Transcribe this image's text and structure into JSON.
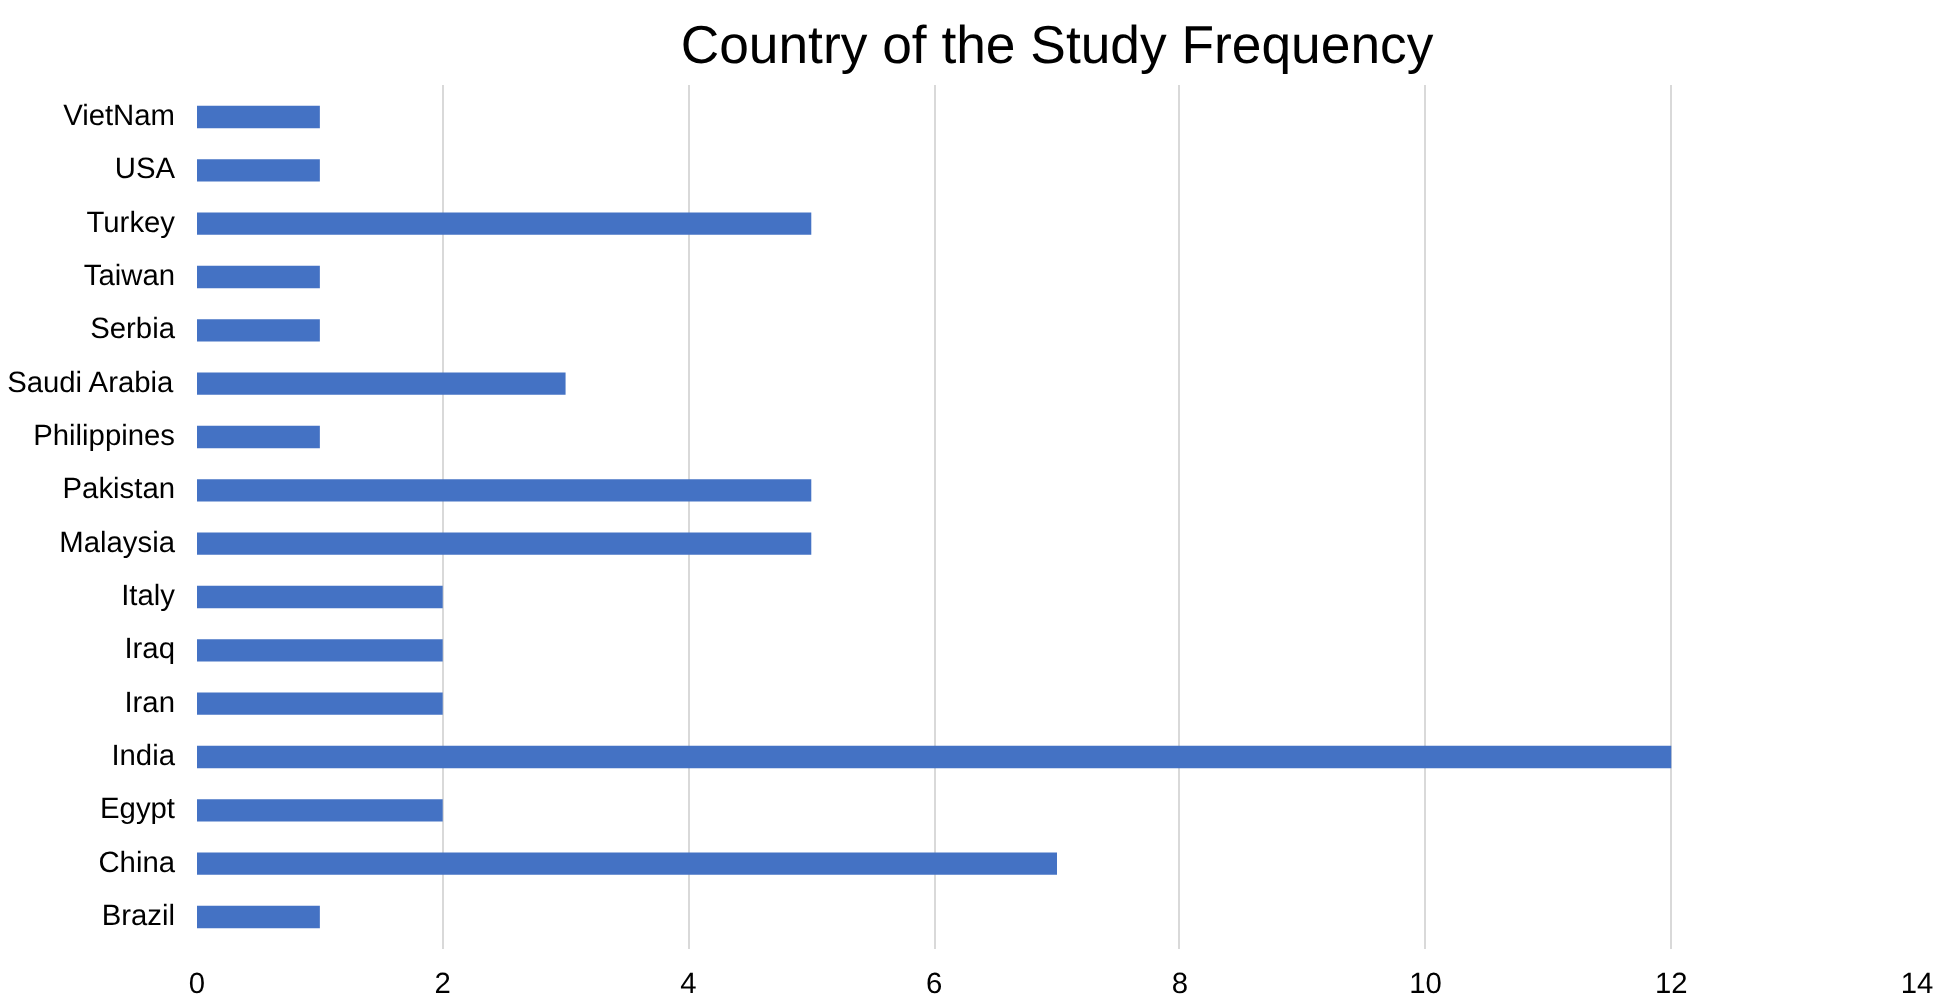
{
  "chart_data": {
    "type": "bar",
    "orientation": "horizontal",
    "title": "Country of the Study Frequency",
    "categories": [
      "VietNam",
      "USA",
      "Turkey",
      "Taiwan",
      "Serbia",
      "Saudi Arabia",
      "Philippines",
      "Pakistan",
      "Malaysia",
      "Italy",
      "Iraq",
      "Iran",
      "India",
      "Egypt",
      "China",
      "Brazil"
    ],
    "values": [
      1,
      1,
      5,
      1,
      1,
      3,
      1,
      5,
      5,
      2,
      2,
      2,
      12,
      2,
      7,
      1
    ],
    "color": "#4472c4",
    "xlim": [
      0,
      14
    ],
    "xticks": [
      0,
      2,
      4,
      6,
      8,
      10,
      12,
      14
    ],
    "grid": "x"
  }
}
